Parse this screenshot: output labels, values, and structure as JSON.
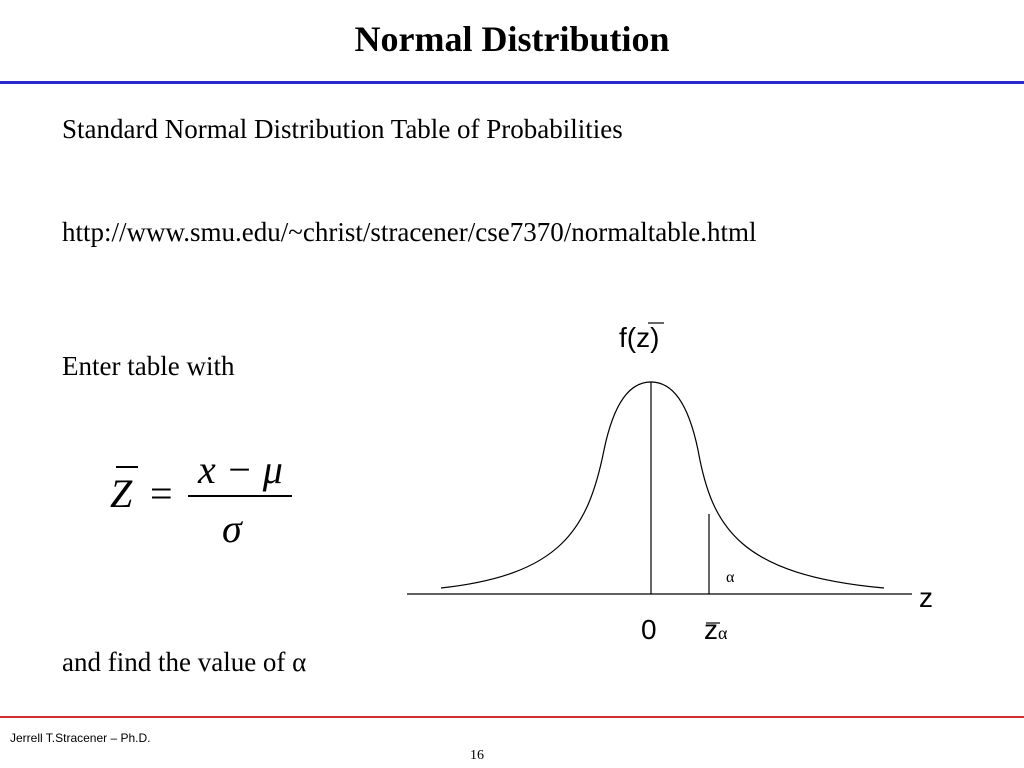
{
  "header": {
    "title": "Normal Distribution"
  },
  "body": {
    "line1": "Standard Normal Distribution Table of Probabilities",
    "url": "http://www.smu.edu/~christ/stracener/cse7370/normaltable.html",
    "line3": "Enter table with",
    "formula": {
      "lhs": "Z",
      "equals": "=",
      "numerator": "x − μ",
      "denominator": "σ"
    },
    "line4": "and find the value of α"
  },
  "diagram": {
    "y_label": "f(z)",
    "area_label": "α",
    "x_label": "z",
    "origin_label": "0",
    "z_alpha": "z",
    "z_alpha_sub": "α"
  },
  "footer": {
    "author": "Jerrell T.Stracener – Ph.D.",
    "page": "16"
  }
}
